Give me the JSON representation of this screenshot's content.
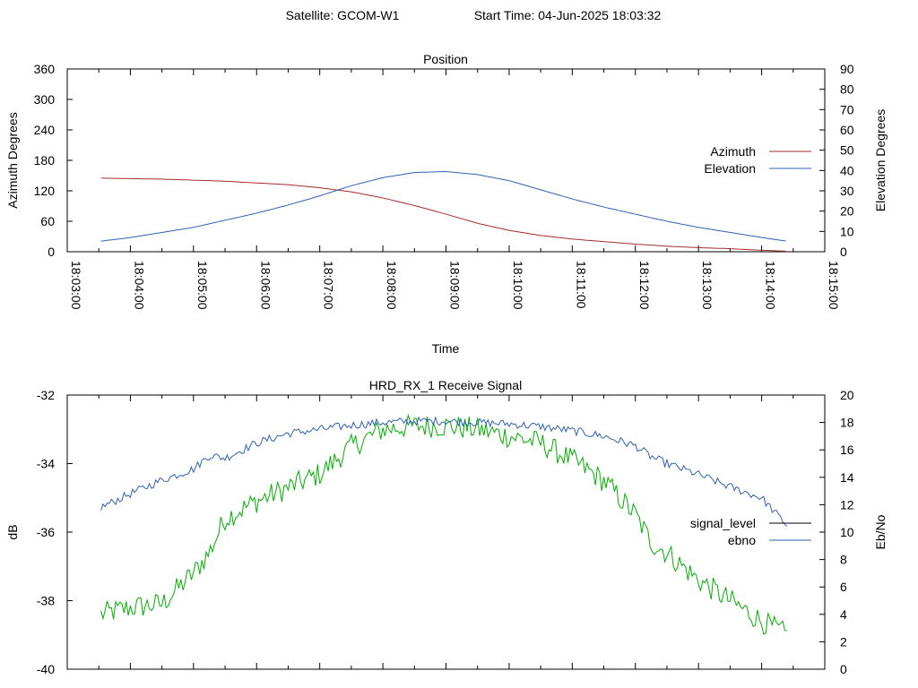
{
  "header": {
    "satellite_label": "Satellite: GCOM-W1",
    "start_label": "Start Time: 04-Jun-2025 18:03:32"
  },
  "colors": {
    "red": "#a52a2a",
    "blue": "#3060b0",
    "green": "#00b000",
    "black": "#000000"
  },
  "chart_data": [
    {
      "type": "line",
      "title": "Position",
      "xlabel": "Time",
      "ylabel": "Azimuth Degrees",
      "y2label": "Elevation Degrees",
      "xlim": [
        "18:03:00",
        "18:15:00"
      ],
      "xticks": [
        "18:03:00",
        "18:04:00",
        "18:05:00",
        "18:06:00",
        "18:07:00",
        "18:08:00",
        "18:09:00",
        "18:10:00",
        "18:11:00",
        "18:12:00",
        "18:13:00",
        "18:14:00",
        "18:15:00"
      ],
      "ylim": [
        0,
        360
      ],
      "yticks": [
        0,
        60,
        120,
        180,
        240,
        300,
        360
      ],
      "y2lim": [
        0,
        90
      ],
      "y2ticks": [
        0,
        10,
        20,
        30,
        40,
        50,
        60,
        70,
        80,
        90
      ],
      "legend_position": "right",
      "series": [
        {
          "name": "Azimuth",
          "axis": "y",
          "color": "#a52a2a",
          "x": [
            "18:03:32",
            "18:04:30",
            "18:05:30",
            "18:06:30",
            "18:07:00",
            "18:07:30",
            "18:08:00",
            "18:08:30",
            "18:09:00",
            "18:09:30",
            "18:10:00",
            "18:10:30",
            "18:11:00",
            "18:11:30",
            "18:12:00",
            "18:12:30",
            "18:13:00",
            "18:13:30",
            "18:14:00",
            "18:14:24"
          ],
          "values": [
            145,
            143,
            139,
            132,
            126,
            118,
            106,
            91,
            74,
            56,
            42,
            32,
            25,
            20,
            15,
            11,
            8,
            6,
            3,
            1
          ]
        },
        {
          "name": "Elevation",
          "axis": "y2",
          "color": "#3060b0",
          "x": [
            "18:03:32",
            "18:04:00",
            "18:04:30",
            "18:05:00",
            "18:05:30",
            "18:06:00",
            "18:06:30",
            "18:07:00",
            "18:07:30",
            "18:08:00",
            "18:08:30",
            "18:09:00",
            "18:09:30",
            "18:10:00",
            "18:10:30",
            "18:11:00",
            "18:11:30",
            "18:12:00",
            "18:12:30",
            "18:13:00",
            "18:13:30",
            "18:14:00",
            "18:14:24"
          ],
          "values": [
            5.2,
            7.0,
            9.5,
            12.0,
            15.5,
            19.0,
            23.0,
            27.5,
            32.5,
            36.5,
            39.0,
            39.5,
            38.0,
            35.0,
            30.5,
            26.0,
            22.0,
            18.5,
            15.0,
            12.0,
            9.5,
            7.0,
            5.2
          ]
        }
      ]
    },
    {
      "type": "line",
      "title": "HRD_RX_1 Receive Signal",
      "ylabel": "dB",
      "y2label": "Eb/No",
      "xlim": [
        "18:03:00",
        "18:15:00"
      ],
      "ylim": [
        -40,
        -32
      ],
      "yticks": [
        -40,
        -38,
        -36,
        -34,
        -32
      ],
      "y2lim": [
        0,
        20
      ],
      "y2ticks": [
        0,
        2,
        4,
        6,
        8,
        10,
        12,
        14,
        16,
        18,
        20
      ],
      "legend_position": "right",
      "series": [
        {
          "name": "signal_level",
          "axis": "y",
          "legend_color": "#000000",
          "color": "#00b000",
          "x": [
            "18:03:32",
            "18:04:00",
            "18:04:30",
            "18:05:00",
            "18:05:15",
            "18:05:30",
            "18:06:00",
            "18:06:30",
            "18:07:00",
            "18:07:30",
            "18:08:00",
            "18:08:30",
            "18:09:00",
            "18:09:30",
            "18:10:00",
            "18:10:30",
            "18:11:00",
            "18:11:30",
            "18:12:00",
            "18:12:15",
            "18:12:30",
            "18:13:00",
            "18:13:30",
            "18:14:00",
            "18:14:24"
          ],
          "values": [
            -38.4,
            -38.2,
            -38.1,
            -37.2,
            -36.6,
            -35.6,
            -35.1,
            -34.7,
            -34.3,
            -33.5,
            -33.0,
            -32.9,
            -32.9,
            -33.0,
            -33.2,
            -33.4,
            -33.9,
            -34.5,
            -35.5,
            -36.3,
            -36.6,
            -37.4,
            -38.0,
            -38.6,
            -39.0
          ]
        },
        {
          "name": "ebno",
          "axis": "y2",
          "color": "#3060b0",
          "x": [
            "18:03:32",
            "18:04:00",
            "18:04:30",
            "18:05:00",
            "18:05:15",
            "18:05:30",
            "18:06:00",
            "18:06:30",
            "18:07:00",
            "18:07:30",
            "18:08:00",
            "18:08:30",
            "18:09:00",
            "18:09:30",
            "18:10:00",
            "18:10:30",
            "18:11:00",
            "18:11:30",
            "18:12:00",
            "18:12:15",
            "18:12:30",
            "18:13:00",
            "18:13:30",
            "18:14:00",
            "18:14:24"
          ],
          "values": [
            11.8,
            12.8,
            13.8,
            14.6,
            15.6,
            15.4,
            16.5,
            17.2,
            17.5,
            17.8,
            18.0,
            18.1,
            18.1,
            18.0,
            17.9,
            17.7,
            17.4,
            17.0,
            16.3,
            15.5,
            15.0,
            14.2,
            13.3,
            12.5,
            10.5
          ]
        }
      ]
    }
  ]
}
